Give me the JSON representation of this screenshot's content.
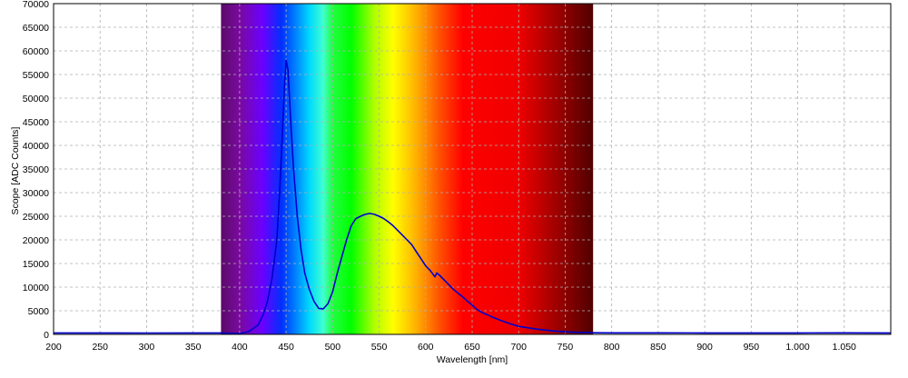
{
  "chart_data": {
    "type": "line",
    "xlabel": "Wavelength [nm]",
    "ylabel": "Scope [ADC Counts]",
    "xlim": [
      200,
      1100
    ],
    "ylim": [
      0,
      70000
    ],
    "grid": true,
    "x_ticks": [
      200,
      250,
      300,
      350,
      400,
      450,
      500,
      550,
      600,
      650,
      700,
      750,
      800,
      850,
      900,
      950,
      1000,
      1050
    ],
    "x_tick_labels": [
      "200",
      "250",
      "300",
      "350",
      "400",
      "450",
      "500",
      "550",
      "600",
      "650",
      "700",
      "750",
      "800",
      "850",
      "900",
      "950",
      "1.000",
      "1.050"
    ],
    "y_ticks": [
      0,
      5000,
      10000,
      15000,
      20000,
      25000,
      30000,
      35000,
      40000,
      45000,
      50000,
      55000,
      60000,
      65000,
      70000
    ],
    "y_tick_labels": [
      "0",
      "5000",
      "10000",
      "15000",
      "20000",
      "25000",
      "30000",
      "35000",
      "40000",
      "45000",
      "50000",
      "55000",
      "60000",
      "65000",
      "70000"
    ],
    "spectrum_band": {
      "range": [
        380,
        780
      ],
      "stops": [
        {
          "nm": 380,
          "color": "#5a0a68"
        },
        {
          "nm": 400,
          "color": "#7a0aa0"
        },
        {
          "nm": 425,
          "color": "#6a00ff"
        },
        {
          "nm": 445,
          "color": "#0030ff"
        },
        {
          "nm": 460,
          "color": "#0080ff"
        },
        {
          "nm": 475,
          "color": "#00d8ff"
        },
        {
          "nm": 490,
          "color": "#40ffd0"
        },
        {
          "nm": 500,
          "color": "#20ff40"
        },
        {
          "nm": 520,
          "color": "#00ff00"
        },
        {
          "nm": 545,
          "color": "#b0ff00"
        },
        {
          "nm": 565,
          "color": "#ffff00"
        },
        {
          "nm": 590,
          "color": "#ffb000"
        },
        {
          "nm": 615,
          "color": "#ff5000"
        },
        {
          "nm": 640,
          "color": "#ff0000"
        },
        {
          "nm": 700,
          "color": "#ee0000"
        },
        {
          "nm": 740,
          "color": "#a00000"
        },
        {
          "nm": 780,
          "color": "#500000"
        }
      ]
    },
    "series": [
      {
        "color": "#0000cc",
        "x": [
          200,
          250,
          300,
          350,
          380,
          400,
          410,
          420,
          425,
          430,
          435,
          440,
          443,
          446,
          448,
          450,
          452,
          455,
          458,
          462,
          466,
          470,
          475,
          480,
          485,
          490,
          495,
          500,
          505,
          510,
          515,
          520,
          525,
          530,
          535,
          540,
          545,
          550,
          555,
          560,
          565,
          570,
          575,
          580,
          585,
          590,
          595,
          600,
          605,
          610,
          612,
          615,
          620,
          625,
          630,
          635,
          640,
          645,
          650,
          655,
          660,
          670,
          680,
          690,
          700,
          720,
          740,
          760,
          780,
          800,
          850,
          900,
          950,
          1000,
          1050,
          1100
        ],
        "y": [
          300,
          300,
          280,
          300,
          300,
          200,
          600,
          2000,
          4000,
          7000,
          12000,
          20000,
          30000,
          42000,
          52000,
          58000,
          56000,
          45000,
          35000,
          25000,
          18000,
          13000,
          9500,
          7000,
          5500,
          5400,
          6500,
          9000,
          13000,
          16500,
          20000,
          23000,
          24500,
          25000,
          25400,
          25600,
          25400,
          25000,
          24500,
          23800,
          23000,
          22000,
          21000,
          20000,
          19000,
          17500,
          16000,
          14500,
          13500,
          12200,
          13000,
          12500,
          11500,
          10500,
          9500,
          8700,
          7900,
          7000,
          6200,
          5300,
          4700,
          3800,
          3000,
          2300,
          1700,
          1100,
          700,
          450,
          350,
          330,
          320,
          300,
          310,
          300,
          320,
          300
        ]
      }
    ]
  }
}
